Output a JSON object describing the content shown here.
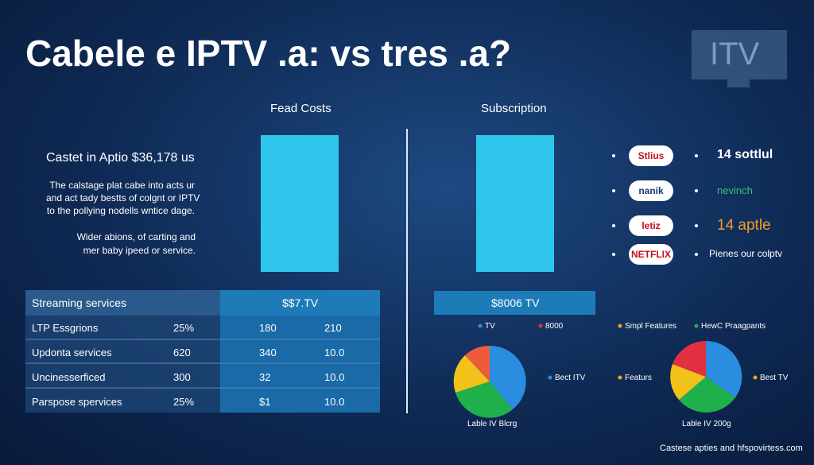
{
  "header": {
    "title": "Cabele e IPTV .a: vs tres .a?",
    "logo": "ITV"
  },
  "columns": {
    "left": "Fead Costs",
    "right": "Subscription"
  },
  "intro": {
    "heading": "Castet in Aptio $36,178 us",
    "lines": [
      "The calstage plat cabe into acts ur",
      "and act tady bestts of colgnt or IPTV",
      "to the pollying nodells wntice dage."
    ],
    "lines2": [
      "Wider abions, of carting and",
      "mer baby ipeed or service."
    ]
  },
  "table": {
    "header": [
      "Streaming services",
      "$$7.TV"
    ],
    "rows": [
      [
        "LTP Essgrions",
        "25%",
        "180",
        "210"
      ],
      [
        "Updonta services",
        "620",
        "340",
        "10.0"
      ],
      [
        "Uncinesserficed",
        "300",
        "32",
        "10.0"
      ],
      [
        "Parspose spervices",
        "25%",
        "$1",
        "10.0"
      ]
    ]
  },
  "box": "$8006 TV",
  "legend": [
    "TV",
    "8000",
    "Smpl Features",
    "HewC Praagpants"
  ],
  "pies": {
    "labels": [
      "Bect ITV",
      "Featurs",
      "Best TV"
    ],
    "captions": [
      "Lable IV Blcrg",
      "Lable IV 200g"
    ]
  },
  "brands": [
    {
      "logo": "Stlius",
      "text": "14 sottlul"
    },
    {
      "logo": "nanik",
      "text": "nevinch"
    },
    {
      "logo": "letiz",
      "text": "14 aptle"
    },
    {
      "logo": "NETFLIX",
      "text": "Pienes our colptv"
    }
  ],
  "footer": "Castese apties and hfspovirtess.com"
}
